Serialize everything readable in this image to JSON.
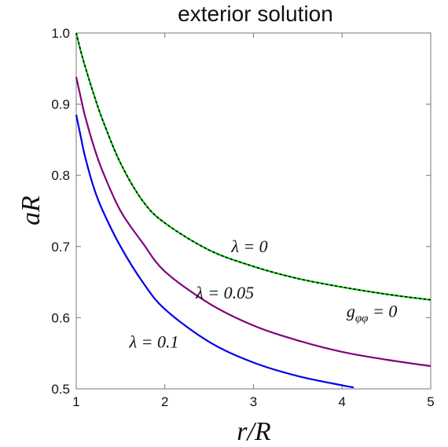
{
  "chart_data": {
    "type": "line",
    "title": "exterior solution",
    "xlabel": "r/R",
    "ylabel": "aR",
    "xlim": [
      1,
      5
    ],
    "ylim": [
      0.5,
      1.0
    ],
    "xticks": [
      "1",
      "2",
      "3",
      "4",
      "5"
    ],
    "yticks": [
      "0.5",
      "0.6",
      "0.7",
      "0.8",
      "0.9",
      "1.0"
    ],
    "grid": false,
    "series": [
      {
        "name": "λ = 0",
        "color": "#00c800",
        "dashed_overlay_color": "#000000",
        "x": [
          1.0,
          1.05,
          1.1,
          1.2,
          1.3,
          1.5,
          1.75,
          2.0,
          2.5,
          3.0,
          3.5,
          4.0,
          4.5,
          5.0
        ],
        "y": [
          1.0,
          0.975,
          0.953,
          0.913,
          0.877,
          0.817,
          0.764,
          0.733,
          0.695,
          0.672,
          0.655,
          0.643,
          0.633,
          0.625
        ]
      },
      {
        "name": "λ = 0.05",
        "color": "#800080",
        "x": [
          1.0,
          1.05,
          1.1,
          1.2,
          1.3,
          1.5,
          1.75,
          2.0,
          2.5,
          3.0,
          3.5,
          4.0,
          4.5,
          5.0
        ],
        "y": [
          0.938,
          0.91,
          0.883,
          0.84,
          0.805,
          0.75,
          0.705,
          0.665,
          0.62,
          0.589,
          0.568,
          0.552,
          0.541,
          0.532
        ]
      },
      {
        "name": "λ = 0.1",
        "color": "#0000e6",
        "x": [
          1.0,
          1.05,
          1.1,
          1.2,
          1.3,
          1.5,
          1.75,
          2.0,
          2.5,
          3.0,
          3.5,
          4.0,
          4.13
        ],
        "y": [
          0.885,
          0.855,
          0.826,
          0.782,
          0.75,
          0.7,
          0.65,
          0.612,
          0.566,
          0.537,
          0.518,
          0.505,
          0.502
        ]
      }
    ],
    "annotations": [
      {
        "text": "λ = 0",
        "x": 2.75,
        "y": 0.692
      },
      {
        "text": "λ = 0.05",
        "x": 2.35,
        "y": 0.627
      },
      {
        "text": "λ = 0.1",
        "x": 1.6,
        "y": 0.558
      },
      {
        "text": "g_φφ = 0",
        "x": 4.05,
        "y": 0.601
      }
    ]
  }
}
